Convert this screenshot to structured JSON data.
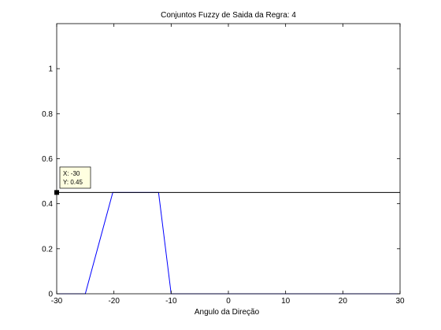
{
  "chart_data": {
    "type": "line",
    "title": "Conjuntos Fuzzy de Saida da Regra: 4",
    "xlabel": "Angulo da Direção",
    "ylabel": "",
    "xlim": [
      -30,
      30
    ],
    "ylim": [
      0,
      1.2
    ],
    "xticks": [
      -30,
      -20,
      -10,
      0,
      10,
      20,
      30
    ],
    "yticks": [
      0,
      0.2,
      0.4,
      0.6,
      0.8,
      1
    ],
    "grid": false,
    "colors": {
      "membership": "#0000ff",
      "cut": "#000000",
      "axes": "#000000"
    },
    "series": [
      {
        "x": [
          -30,
          -25,
          -20.2,
          -12.2,
          -10,
          30
        ],
        "y": [
          0,
          0,
          0.45,
          0.45,
          0,
          0
        ]
      },
      {
        "x": [
          -30,
          30
        ],
        "y": [
          0.45,
          0.45
        ]
      }
    ],
    "datatip": {
      "x": -30,
      "y": 0.45,
      "x_text": "X: -30",
      "y_text": "Y: 0.45"
    }
  }
}
